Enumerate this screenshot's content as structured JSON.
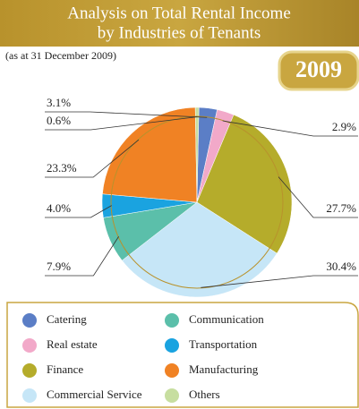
{
  "chart_data": {
    "type": "pie",
    "title": [
      "Analysis on Total Rental Income",
      "by Industries of Tenants"
    ],
    "subtitle": "(as at 31 December 2009)",
    "annotation": "2009",
    "categories": [
      "Catering",
      "Real estate",
      "Finance",
      "Commercial Service",
      "Communication",
      "Transportation",
      "Manufacturing",
      "Others"
    ],
    "values": [
      3.1,
      2.9,
      27.7,
      30.4,
      7.9,
      4.0,
      23.3,
      0.6
    ],
    "value_labels": [
      "3.1%",
      "2.9%",
      "27.7%",
      "30.4%",
      "7.9%",
      "4.0%",
      "23.3%",
      "0.6%"
    ],
    "colors": [
      "#5b7ec6",
      "#f2a9c9",
      "#b5ac2b",
      "#c6e6f7",
      "#5bbfaa",
      "#1aa3e0",
      "#f08224",
      "#c7dea0"
    ]
  }
}
